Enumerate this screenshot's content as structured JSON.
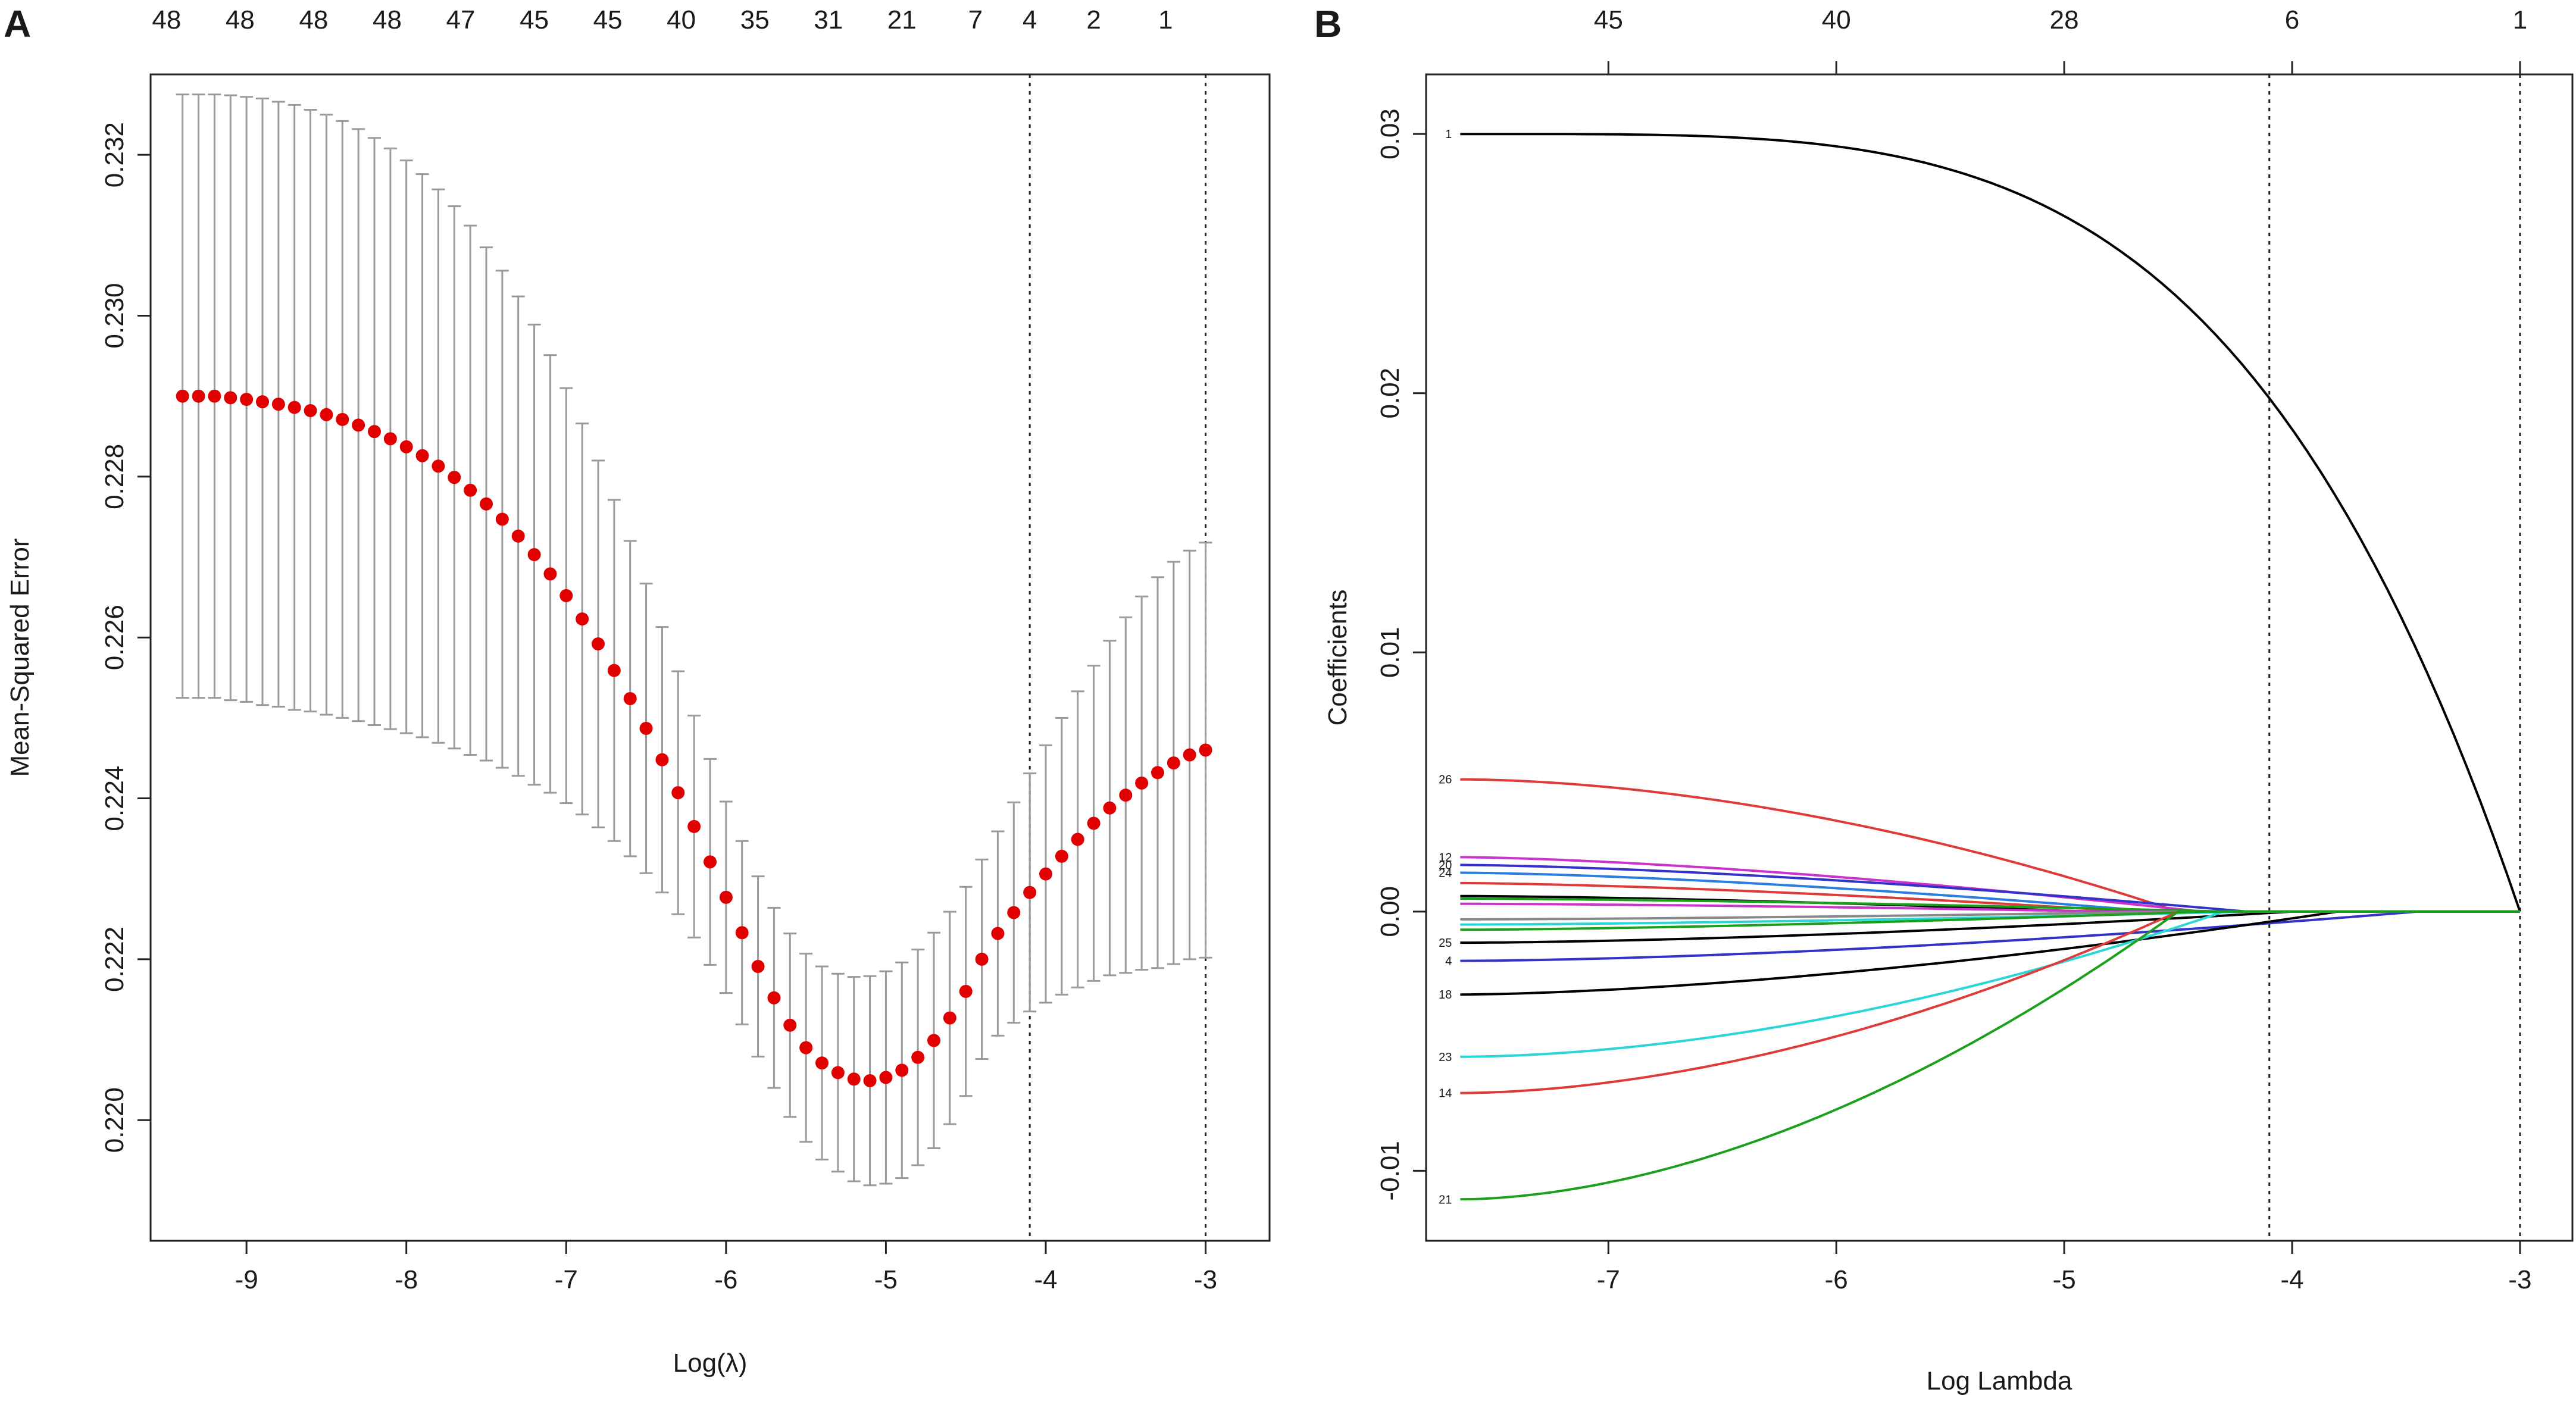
{
  "chart_data": [
    {
      "panel_label": "A",
      "type": "scatter",
      "title": "",
      "xlabel": "Log(λ)",
      "ylabel": "Mean-Squared Error",
      "xlim": [
        -9.6,
        -2.6
      ],
      "ylim": [
        0.2185,
        0.233
      ],
      "x_ticks": [
        -9,
        -8,
        -7,
        -6,
        -5,
        -4,
        -3
      ],
      "y_ticks": [
        0.22,
        0.222,
        0.224,
        0.226,
        0.228,
        0.23,
        0.232
      ],
      "x_tick_labels": [
        "-9",
        "-8",
        "-7",
        "-6",
        "-5",
        "-4",
        "-3"
      ],
      "y_tick_labels": [
        "0.220",
        "0.222",
        "0.224",
        "0.226",
        "0.228",
        "0.230",
        "0.232"
      ],
      "top_axis": {
        "x": [
          -9.4,
          -9.03,
          -8.66,
          -8.29,
          -7.92,
          -7.55,
          -7.18,
          -6.81,
          -6.44,
          -6.07,
          -5.68,
          -5.22,
          -4.87,
          -4.5,
          -4.13
        ],
        "labels": [
          "48",
          "48",
          "48",
          "48",
          "47",
          "45",
          "45",
          "40",
          "35",
          "31",
          "21",
          "7",
          "4",
          "2",
          "1"
        ]
      },
      "top_axis_positions": [
        -9.6,
        -9.2,
        -8.7,
        -8.3,
        -7.9,
        -7.5,
        -7.05,
        -6.6,
        -6.2,
        -5.75,
        -5.3,
        -4.85,
        -4.1,
        -3.6,
        -3.1
      ],
      "series": [
        {
          "name": "Cross-validated MSE",
          "color": "#e00000",
          "x_start": -9.4,
          "x_step": 0.1,
          "count": 65,
          "values": [
            0.229,
            0.229,
            0.229,
            0.22898,
            0.22896,
            0.22893,
            0.2289,
            0.22886,
            0.22882,
            0.22877,
            0.22871,
            0.22864,
            0.22856,
            0.22847,
            0.22837,
            0.22826,
            0.22813,
            0.22799,
            0.22783,
            0.22766,
            0.22747,
            0.22726,
            0.22703,
            0.22679,
            0.22652,
            0.22623,
            0.22592,
            0.22559,
            0.22524,
            0.22487,
            0.22448,
            0.22407,
            0.22365,
            0.22321,
            0.22277,
            0.22233,
            0.22191,
            0.22152,
            0.22118,
            0.2209,
            0.22071,
            0.22059,
            0.22051,
            0.22049,
            0.22053,
            0.22062,
            0.22078,
            0.22099,
            0.22127,
            0.2216,
            0.222,
            0.22232,
            0.22258,
            0.22283,
            0.22306,
            0.22328,
            0.22349,
            0.22369,
            0.22388,
            0.22404,
            0.22419,
            0.22432,
            0.22444,
            0.22454,
            0.2246
          ],
          "upper": [
            0.23275,
            0.23275,
            0.23275,
            0.23274,
            0.23272,
            0.2327,
            0.23266,
            0.23262,
            0.23256,
            0.2325,
            0.23242,
            0.23232,
            0.23221,
            0.23208,
            0.23193,
            0.23176,
            0.23157,
            0.23136,
            0.23112,
            0.23085,
            0.23056,
            0.23024,
            0.22989,
            0.22951,
            0.2291,
            0.22866,
            0.2282,
            0.22771,
            0.2272,
            0.22667,
            0.22613,
            0.22558,
            0.22503,
            0.22449,
            0.22396,
            0.22347,
            0.22303,
            0.22264,
            0.22232,
            0.22207,
            0.22191,
            0.22182,
            0.22178,
            0.22179,
            0.22185,
            0.22196,
            0.22212,
            0.22233,
            0.22259,
            0.2229,
            0.22324,
            0.22359,
            0.22395,
            0.22431,
            0.22466,
            0.225,
            0.22533,
            0.22565,
            0.22596,
            0.22625,
            0.22651,
            0.22675,
            0.22694,
            0.22708,
            0.22718
          ],
          "lower": [
            0.22525,
            0.22525,
            0.22525,
            0.22522,
            0.2252,
            0.22516,
            0.22514,
            0.2251,
            0.22508,
            0.22504,
            0.225,
            0.22496,
            0.22491,
            0.22486,
            0.22481,
            0.22476,
            0.22469,
            0.22462,
            0.22454,
            0.22447,
            0.22438,
            0.22428,
            0.22417,
            0.22407,
            0.22394,
            0.2238,
            0.22364,
            0.22347,
            0.22328,
            0.22307,
            0.22283,
            0.22256,
            0.22227,
            0.22193,
            0.22158,
            0.22119,
            0.22079,
            0.2204,
            0.22004,
            0.21973,
            0.21951,
            0.21936,
            0.21924,
            0.21919,
            0.21921,
            0.21928,
            0.21944,
            0.21965,
            0.21995,
            0.2203,
            0.22076,
            0.22105,
            0.22121,
            0.22135,
            0.22146,
            0.22156,
            0.22165,
            0.22173,
            0.2218,
            0.22183,
            0.22187,
            0.22189,
            0.22194,
            0.222,
            0.22202
          ]
        }
      ],
      "vlines": [
        -4.1,
        -3.0
      ],
      "top_labels_exact": [
        {
          "x": -9.5,
          "label": "48"
        },
        {
          "x": -9.04,
          "label": "48"
        },
        {
          "x": -8.58,
          "label": "48"
        },
        {
          "x": -8.12,
          "label": "48"
        },
        {
          "x": -7.66,
          "label": "47"
        },
        {
          "x": -7.2,
          "label": "45"
        },
        {
          "x": -6.74,
          "label": "45"
        },
        {
          "x": -6.28,
          "label": "40"
        },
        {
          "x": -5.82,
          "label": "35"
        },
        {
          "x": -5.36,
          "label": "31"
        },
        {
          "x": -4.9,
          "label": "21"
        },
        {
          "x": -4.44,
          "label": "7"
        },
        {
          "x": -4.1,
          "label": "4"
        },
        {
          "x": -3.7,
          "label": "2"
        },
        {
          "x": -3.25,
          "label": "1"
        }
      ]
    },
    {
      "panel_label": "B",
      "type": "line",
      "title": "",
      "xlabel": "Log Lambda",
      "ylabel": "Coefficients",
      "xlim": [
        -7.8,
        -2.77
      ],
      "ylim": [
        -0.0127,
        0.0323
      ],
      "x_ticks": [
        -7,
        -6,
        -5,
        -4,
        -3
      ],
      "y_ticks": [
        -0.01,
        0.0,
        0.01,
        0.02,
        0.03
      ],
      "x_tick_labels": [
        "-7",
        "-6",
        "-5",
        "-4",
        "-3"
      ],
      "y_tick_labels": [
        "-0.01",
        "0.00",
        "0.01",
        "0.02",
        "0.03"
      ],
      "top_axis": {
        "x": [
          -7.0,
          -6.0,
          -5.0,
          -4.0,
          -3.0
        ],
        "labels": [
          "45",
          "40",
          "28",
          "6",
          "1"
        ]
      },
      "vlines": [
        -4.1,
        -3.0
      ],
      "x_start": -7.65,
      "series": [
        {
          "name": "1",
          "color": "#000000",
          "start": 0.03,
          "end_x": -3.0,
          "shape": 4.0
        },
        {
          "name": "26",
          "color": "#df3b3b",
          "start": 0.0051,
          "end_x": -4.5,
          "shape": 1.8
        },
        {
          "name": "12",
          "color": "#cc33cc",
          "start": 0.0021,
          "end_x": -4.4,
          "shape": 1.5
        },
        {
          "name": "20",
          "color": "#3333cc",
          "start": 0.0018,
          "end_x": -4.2,
          "shape": 1.5
        },
        {
          "name": "24",
          "color": "#2b7de0",
          "start": 0.0015,
          "end_x": -4.6,
          "shape": 1.5
        },
        {
          "name": "",
          "color": "#df3b3b",
          "start": 0.0011,
          "end_x": -4.7,
          "shape": 1.5
        },
        {
          "name": "",
          "color": "#000000",
          "start": 0.0006,
          "end_x": -4.9,
          "shape": 1.5
        },
        {
          "name": "",
          "color": "#1aa01a",
          "start": 0.0005,
          "end_x": -4.3,
          "shape": 1.5
        },
        {
          "name": "",
          "color": "#cc33cc",
          "start": 0.0003,
          "end_x": -4.8,
          "shape": 1.5
        },
        {
          "name": "",
          "color": "#888888",
          "start": -0.0003,
          "end_x": -4.5,
          "shape": 1.5
        },
        {
          "name": "",
          "color": "#2bd6d6",
          "start": -0.0005,
          "end_x": -4.2,
          "shape": 1.5
        },
        {
          "name": "",
          "color": "#1aa01a",
          "start": -0.0007,
          "end_x": -4.4,
          "shape": 1.5
        },
        {
          "name": "25",
          "color": "#000000",
          "start": -0.0012,
          "end_x": -4.0,
          "shape": 1.6
        },
        {
          "name": "4",
          "color": "#3333cc",
          "start": -0.0019,
          "end_x": -3.45,
          "shape": 1.6
        },
        {
          "name": "18",
          "color": "#000000",
          "start": -0.0032,
          "end_x": -3.8,
          "shape": 1.6
        },
        {
          "name": "23",
          "color": "#2bd6d6",
          "start": -0.0056,
          "end_x": -4.3,
          "shape": 1.8
        },
        {
          "name": "14",
          "color": "#df3b3b",
          "start": -0.007,
          "end_x": -4.5,
          "shape": 1.8
        },
        {
          "name": "21",
          "color": "#1aa01a",
          "start": -0.0111,
          "end_x": -4.5,
          "shape": 1.8
        }
      ]
    }
  ]
}
